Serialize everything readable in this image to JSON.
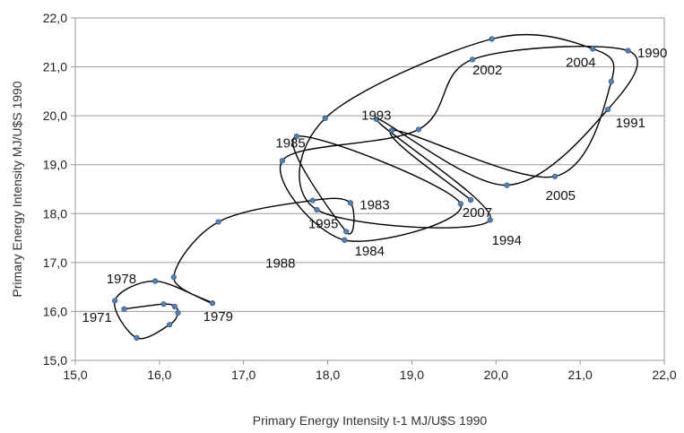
{
  "chart_data": {
    "type": "scatter",
    "title": "",
    "xlabel": "Primary Energy Intensity t-1 MJ/U$S 1990",
    "ylabel": "Primary Energy Intensity MJ/U$S 1990",
    "xlim": [
      15.0,
      22.0
    ],
    "ylim": [
      15.0,
      22.0
    ],
    "xticks": [
      "15,0",
      "16,0",
      "17,0",
      "18,0",
      "19,0",
      "20,0",
      "21,0",
      "22,0"
    ],
    "yticks": [
      "15,0",
      "16,0",
      "17,0",
      "18,0",
      "19,0",
      "20,0",
      "21,0",
      "22,0"
    ],
    "grid": "horizontal",
    "legend": "none",
    "line_color": "#000000",
    "marker_color": "#4f81bd",
    "points": [
      {
        "x": 15.58,
        "y": 16.05
      },
      {
        "x": 16.05,
        "y": 16.15
      },
      {
        "x": 16.18,
        "y": 16.1
      },
      {
        "x": 16.22,
        "y": 15.97
      },
      {
        "x": 16.12,
        "y": 15.73
      },
      {
        "x": 15.73,
        "y": 15.46
      },
      {
        "x": 15.47,
        "y": 16.22
      },
      {
        "x": 15.95,
        "y": 16.62
      },
      {
        "x": 16.63,
        "y": 16.17
      },
      {
        "x": 16.17,
        "y": 16.7
      },
      {
        "x": 16.7,
        "y": 17.83
      },
      {
        "x": 17.82,
        "y": 18.27
      },
      {
        "x": 18.27,
        "y": 18.22
      },
      {
        "x": 18.22,
        "y": 17.63
      },
      {
        "x": 17.63,
        "y": 19.58
      },
      {
        "x": 19.58,
        "y": 18.2
      },
      {
        "x": 18.2,
        "y": 17.46
      },
      {
        "x": 17.46,
        "y": 19.08
      },
      {
        "x": 19.08,
        "y": 19.72
      },
      {
        "x": 19.72,
        "y": 21.15
      },
      {
        "x": 21.57,
        "y": 21.33
      },
      {
        "x": 21.33,
        "y": 20.13
      },
      {
        "x": 20.13,
        "y": 18.58
      },
      {
        "x": 18.58,
        "y": 19.93
      },
      {
        "x": 19.93,
        "y": 17.87
      },
      {
        "x": 17.87,
        "y": 18.08
      },
      {
        "x": 17.97,
        "y": 19.95
      },
      {
        "x": 19.95,
        "y": 21.57
      },
      {
        "x": 21.15,
        "y": 21.37
      },
      {
        "x": 21.37,
        "y": 20.7
      },
      {
        "x": 20.7,
        "y": 18.76
      },
      {
        "x": 18.76,
        "y": 19.7
      },
      {
        "x": 19.7,
        "y": 18.28
      }
    ],
    "annotations": [
      {
        "text": "1971",
        "x": 15.08,
        "y": 15.79
      },
      {
        "text": "1978",
        "x": 15.37,
        "y": 16.58
      },
      {
        "text": "1979",
        "x": 16.52,
        "y": 15.81
      },
      {
        "text": "1983",
        "x": 18.38,
        "y": 18.09
      },
      {
        "text": "1984",
        "x": 18.32,
        "y": 17.14
      },
      {
        "text": "1985",
        "x": 17.38,
        "y": 19.35
      },
      {
        "text": "1988",
        "x": 17.26,
        "y": 16.9
      },
      {
        "text": "1990",
        "x": 21.68,
        "y": 21.19
      },
      {
        "text": "1991",
        "x": 21.42,
        "y": 19.76
      },
      {
        "text": "1993",
        "x": 18.4,
        "y": 19.92
      },
      {
        "text": "1994",
        "x": 19.95,
        "y": 17.36
      },
      {
        "text": "1995",
        "x": 17.77,
        "y": 17.7
      },
      {
        "text": "2002",
        "x": 19.72,
        "y": 20.85
      },
      {
        "text": "2004",
        "x": 20.83,
        "y": 21.0
      },
      {
        "text": "2005",
        "x": 20.59,
        "y": 18.28
      },
      {
        "text": "2007",
        "x": 19.6,
        "y": 17.93
      }
    ]
  }
}
